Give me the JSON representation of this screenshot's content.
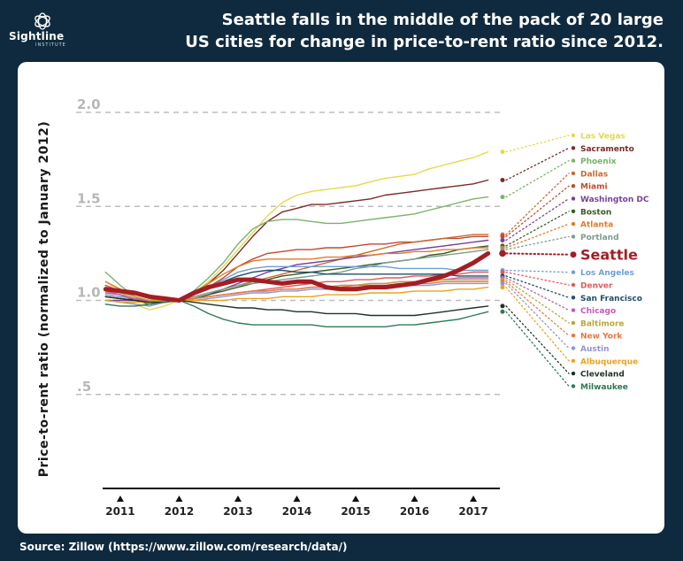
{
  "header": {
    "logo_text": "Sightline",
    "logo_sub": "INSTITUTE",
    "title_line1": "Seattle falls in the middle of the pack of 20 large",
    "title_line2": "US cities for change in price-to-rent ratio since 2012."
  },
  "footer": {
    "source": "Source: Zillow (https://www.zillow.com/research/data/)"
  },
  "chart_data": {
    "type": "line",
    "title": "Seattle falls in the middle of the pack of 20 large US cities for change in price-to-rent ratio since 2012.",
    "ylabel": "Price-to-rent ratio (normalized to January 2012)",
    "xlabel": "",
    "ylim": [
      0,
      2.0
    ],
    "xlim": [
      2010.7,
      2017.45
    ],
    "y_ticks": [
      {
        "value": 0.5,
        "label": ".5"
      },
      {
        "value": 1.0,
        "label": "1.0"
      },
      {
        "value": 1.5,
        "label": "1.5"
      },
      {
        "value": 2.0,
        "label": "2.0"
      }
    ],
    "x_ticks": [
      {
        "value": 2011,
        "label": "2011"
      },
      {
        "value": 2012,
        "label": "2012"
      },
      {
        "value": 2013,
        "label": "2013"
      },
      {
        "value": 2014,
        "label": "2014"
      },
      {
        "value": 2015,
        "label": "2015"
      },
      {
        "value": 2016,
        "label": "2016"
      },
      {
        "value": 2017,
        "label": "2017"
      }
    ],
    "grid": "horizontal dashed",
    "legend": "right, ordered by final value",
    "x": [
      2010.75,
      2011.0,
      2011.25,
      2011.5,
      2011.75,
      2012.0,
      2012.25,
      2012.5,
      2012.75,
      2013.0,
      2013.25,
      2013.5,
      2013.75,
      2014.0,
      2014.25,
      2014.5,
      2014.75,
      2015.0,
      2015.25,
      2015.5,
      2015.75,
      2016.0,
      2016.25,
      2016.5,
      2016.75,
      2017.0,
      2017.25
    ],
    "series": [
      {
        "name": "Las Vegas",
        "color": "#e6d84a",
        "values": [
          1.1,
          1.05,
          0.98,
          0.95,
          0.97,
          1.0,
          1.04,
          1.1,
          1.18,
          1.27,
          1.36,
          1.45,
          1.52,
          1.56,
          1.58,
          1.59,
          1.6,
          1.61,
          1.63,
          1.65,
          1.66,
          1.67,
          1.7,
          1.72,
          1.74,
          1.76,
          1.79
        ]
      },
      {
        "name": "Sacramento",
        "color": "#7a2a2a",
        "values": [
          1.05,
          1.03,
          1.0,
          0.98,
          0.99,
          1.0,
          1.04,
          1.09,
          1.16,
          1.25,
          1.34,
          1.42,
          1.47,
          1.49,
          1.51,
          1.51,
          1.52,
          1.53,
          1.54,
          1.56,
          1.57,
          1.58,
          1.59,
          1.6,
          1.61,
          1.62,
          1.64
        ]
      },
      {
        "name": "Phoenix",
        "color": "#7ab36a",
        "values": [
          1.15,
          1.08,
          1.02,
          0.98,
          0.99,
          1.0,
          1.05,
          1.12,
          1.2,
          1.3,
          1.38,
          1.42,
          1.43,
          1.43,
          1.42,
          1.41,
          1.41,
          1.42,
          1.43,
          1.44,
          1.45,
          1.46,
          1.48,
          1.5,
          1.52,
          1.54,
          1.55
        ]
      },
      {
        "name": "Miami",
        "color": "#c24a2f",
        "values": [
          1.08,
          1.05,
          1.02,
          1.0,
          1.0,
          1.0,
          1.03,
          1.07,
          1.12,
          1.18,
          1.22,
          1.25,
          1.26,
          1.27,
          1.27,
          1.28,
          1.28,
          1.29,
          1.3,
          1.3,
          1.31,
          1.31,
          1.32,
          1.33,
          1.33,
          1.34,
          1.34
        ]
      },
      {
        "name": "Dallas",
        "color": "#c8692e",
        "values": [
          1.02,
          1.01,
          1.0,
          0.99,
          0.99,
          1.0,
          1.02,
          1.04,
          1.06,
          1.08,
          1.1,
          1.12,
          1.14,
          1.16,
          1.18,
          1.2,
          1.22,
          1.24,
          1.26,
          1.28,
          1.3,
          1.31,
          1.32,
          1.33,
          1.34,
          1.35,
          1.35
        ]
      },
      {
        "name": "Washington DC",
        "color": "#7a3f99",
        "values": [
          1.0,
          1.0,
          1.0,
          1.0,
          1.0,
          1.0,
          1.01,
          1.03,
          1.06,
          1.09,
          1.12,
          1.15,
          1.17,
          1.19,
          1.2,
          1.21,
          1.22,
          1.23,
          1.24,
          1.25,
          1.26,
          1.27,
          1.28,
          1.29,
          1.3,
          1.31,
          1.32
        ]
      },
      {
        "name": "Boston",
        "color": "#3d5a1e",
        "values": [
          1.02,
          1.01,
          1.0,
          0.99,
          0.99,
          1.0,
          1.01,
          1.03,
          1.05,
          1.07,
          1.09,
          1.11,
          1.13,
          1.14,
          1.15,
          1.16,
          1.17,
          1.18,
          1.19,
          1.2,
          1.21,
          1.22,
          1.24,
          1.25,
          1.27,
          1.28,
          1.29
        ]
      },
      {
        "name": "Atlanta",
        "color": "#e07b2a",
        "values": [
          1.1,
          1.06,
          1.02,
          0.99,
          0.99,
          1.0,
          1.04,
          1.09,
          1.14,
          1.18,
          1.21,
          1.22,
          1.22,
          1.22,
          1.22,
          1.23,
          1.23,
          1.24,
          1.24,
          1.25,
          1.25,
          1.26,
          1.26,
          1.27,
          1.27,
          1.28,
          1.28
        ]
      },
      {
        "name": "Portland",
        "color": "#7a9e8f",
        "values": [
          1.05,
          1.03,
          1.01,
          0.99,
          0.99,
          1.0,
          1.02,
          1.04,
          1.06,
          1.08,
          1.09,
          1.1,
          1.11,
          1.12,
          1.13,
          1.14,
          1.15,
          1.17,
          1.18,
          1.2,
          1.21,
          1.22,
          1.23,
          1.24,
          1.25,
          1.26,
          1.27
        ]
      },
      {
        "name": "Seattle",
        "color": "#a51d24",
        "values": [
          1.06,
          1.05,
          1.04,
          1.02,
          1.01,
          1.0,
          1.04,
          1.07,
          1.09,
          1.11,
          1.11,
          1.1,
          1.09,
          1.1,
          1.1,
          1.07,
          1.06,
          1.06,
          1.07,
          1.07,
          1.08,
          1.09,
          1.11,
          1.13,
          1.16,
          1.2,
          1.25
        ]
      },
      {
        "name": "Los Angeles",
        "color": "#6f9ed3",
        "values": [
          1.03,
          1.02,
          1.01,
          1.0,
          1.0,
          1.0,
          1.03,
          1.07,
          1.11,
          1.15,
          1.17,
          1.18,
          1.18,
          1.18,
          1.18,
          1.18,
          1.18,
          1.18,
          1.18,
          1.18,
          1.17,
          1.17,
          1.17,
          1.17,
          1.16,
          1.16,
          1.16
        ]
      },
      {
        "name": "Denver",
        "color": "#e05a5a",
        "values": [
          1.04,
          1.03,
          1.01,
          1.0,
          1.0,
          1.0,
          1.01,
          1.02,
          1.03,
          1.04,
          1.05,
          1.06,
          1.07,
          1.08,
          1.09,
          1.1,
          1.1,
          1.11,
          1.11,
          1.12,
          1.12,
          1.13,
          1.13,
          1.14,
          1.14,
          1.15,
          1.15
        ]
      },
      {
        "name": "San Francisco",
        "color": "#1f4e6b",
        "values": [
          1.02,
          1.01,
          1.0,
          0.99,
          0.99,
          1.0,
          1.03,
          1.06,
          1.1,
          1.13,
          1.15,
          1.16,
          1.16,
          1.15,
          1.15,
          1.14,
          1.14,
          1.14,
          1.14,
          1.14,
          1.14,
          1.14,
          1.14,
          1.14,
          1.13,
          1.13,
          1.13
        ]
      },
      {
        "name": "Chicago",
        "color": "#c45bb5",
        "values": [
          1.05,
          1.03,
          1.01,
          0.99,
          0.99,
          1.0,
          1.01,
          1.02,
          1.03,
          1.04,
          1.05,
          1.05,
          1.06,
          1.06,
          1.07,
          1.07,
          1.08,
          1.08,
          1.09,
          1.09,
          1.1,
          1.1,
          1.11,
          1.11,
          1.12,
          1.12,
          1.12
        ]
      },
      {
        "name": "Baltimore",
        "color": "#b8a838",
        "values": [
          1.06,
          1.04,
          1.02,
          1.0,
          1.0,
          1.0,
          1.01,
          1.02,
          1.03,
          1.04,
          1.05,
          1.05,
          1.06,
          1.06,
          1.07,
          1.07,
          1.08,
          1.08,
          1.09,
          1.09,
          1.1,
          1.1,
          1.1,
          1.11,
          1.11,
          1.11,
          1.11
        ]
      },
      {
        "name": "New York",
        "color": "#e8763e",
        "values": [
          1.07,
          1.05,
          1.03,
          1.01,
          1.0,
          1.0,
          1.01,
          1.02,
          1.03,
          1.04,
          1.05,
          1.05,
          1.06,
          1.06,
          1.07,
          1.07,
          1.07,
          1.08,
          1.08,
          1.08,
          1.09,
          1.09,
          1.09,
          1.1,
          1.1,
          1.1,
          1.1
        ]
      },
      {
        "name": "Austin",
        "color": "#8f94d6",
        "values": [
          1.0,
          0.99,
          0.98,
          0.97,
          0.99,
          1.0,
          1.0,
          1.01,
          1.02,
          1.03,
          1.04,
          1.04,
          1.05,
          1.05,
          1.06,
          1.06,
          1.06,
          1.07,
          1.07,
          1.07,
          1.08,
          1.08,
          1.08,
          1.09,
          1.09,
          1.09,
          1.09
        ]
      },
      {
        "name": "Albuquerque",
        "color": "#e8a321",
        "values": [
          1.0,
          0.99,
          0.99,
          0.99,
          0.99,
          1.0,
          1.0,
          1.0,
          1.0,
          1.01,
          1.01,
          1.01,
          1.02,
          1.02,
          1.02,
          1.03,
          1.03,
          1.03,
          1.04,
          1.04,
          1.04,
          1.05,
          1.05,
          1.05,
          1.06,
          1.06,
          1.07
        ]
      },
      {
        "name": "Cleveland",
        "color": "#1e3325",
        "values": [
          1.02,
          1.01,
          1.0,
          0.99,
          0.99,
          1.0,
          0.99,
          0.98,
          0.97,
          0.96,
          0.96,
          0.95,
          0.95,
          0.94,
          0.94,
          0.93,
          0.93,
          0.93,
          0.92,
          0.92,
          0.92,
          0.92,
          0.93,
          0.94,
          0.95,
          0.96,
          0.97
        ]
      },
      {
        "name": "Milwaukee",
        "color": "#2e7a56",
        "values": [
          0.98,
          0.97,
          0.97,
          0.98,
          0.99,
          1.0,
          0.97,
          0.93,
          0.9,
          0.88,
          0.87,
          0.87,
          0.87,
          0.87,
          0.87,
          0.86,
          0.86,
          0.86,
          0.86,
          0.86,
          0.87,
          0.87,
          0.88,
          0.89,
          0.9,
          0.92,
          0.94
        ]
      }
    ]
  }
}
